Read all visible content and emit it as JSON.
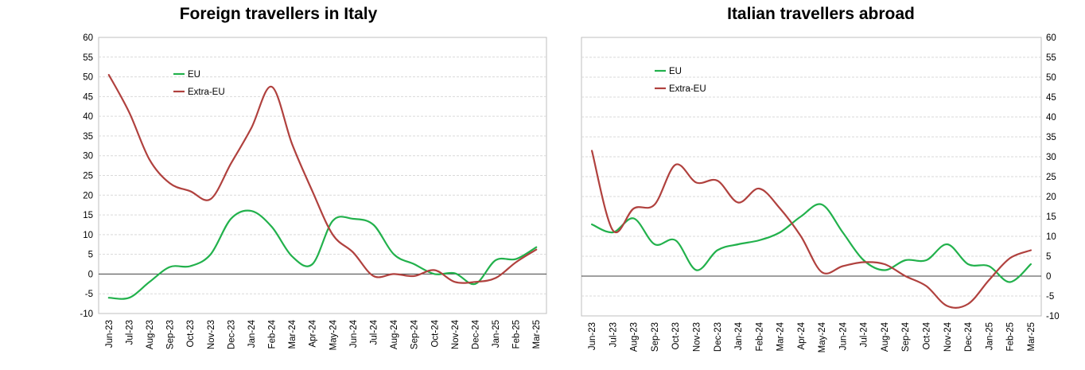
{
  "chart_data": [
    {
      "type": "line",
      "title": "Foreign travellers in Italy",
      "xlabel": "",
      "ylabel": "",
      "ylim": [
        -10,
        60
      ],
      "ytick_step": 5,
      "y_axis_side": "left",
      "legend_placement": "top-left",
      "grid": true,
      "categories": [
        "Jun-23",
        "Jul-23",
        "Aug-23",
        "Sep-23",
        "Oct-23",
        "Nov-23",
        "Dec-23",
        "Jan-24",
        "Feb-24",
        "Mar-24",
        "Apr-24",
        "May-24",
        "Jun-24",
        "Jul-24",
        "Aug-24",
        "Sep-24",
        "Oct-24",
        "Nov-24",
        "Dec-24",
        "Jan-25",
        "Feb-25",
        "Mar-25"
      ],
      "series": [
        {
          "name": "EU",
          "color": "#22b14c",
          "values": [
            -6,
            -6,
            -2,
            1.8,
            2,
            5,
            14,
            16,
            12,
            4.5,
            2.5,
            13.5,
            14,
            12.5,
            5,
            2.5,
            0,
            0.2,
            -2.5,
            3.5,
            3.8,
            6.8
          ]
        },
        {
          "name": "Extra-EU",
          "color": "#b0413e",
          "values": [
            50.5,
            41,
            29,
            23,
            21,
            19,
            28,
            37,
            47.5,
            33,
            21,
            10,
            5.5,
            -0.5,
            0,
            -0.5,
            1,
            -2,
            -2,
            -1,
            3,
            6.2
          ]
        }
      ]
    },
    {
      "type": "line",
      "title": "Italian travellers abroad",
      "xlabel": "",
      "ylabel": "",
      "ylim": [
        -10,
        60
      ],
      "ytick_step": 5,
      "y_axis_side": "right",
      "legend_placement": "top-left",
      "grid": true,
      "categories": [
        "Jun-23",
        "Jul-23",
        "Aug-23",
        "Sep-23",
        "Oct-23",
        "Nov-23",
        "Dec-23",
        "Jan-24",
        "Feb-24",
        "Mar-24",
        "Apr-24",
        "May-24",
        "Jun-24",
        "Jul-24",
        "Aug-24",
        "Sep-24",
        "Oct-24",
        "Nov-24",
        "Dec-24",
        "Jan-25",
        "Feb-25",
        "Mar-25"
      ],
      "series": [
        {
          "name": "EU",
          "color": "#22b14c",
          "values": [
            13,
            11,
            14.5,
            8,
            9,
            1.5,
            6.5,
            8,
            9,
            11,
            15,
            18,
            11,
            4,
            1.5,
            4,
            4,
            8,
            3,
            2.5,
            -1.5,
            3
          ]
        },
        {
          "name": "Extra-EU",
          "color": "#b0413e",
          "values": [
            31.5,
            11.5,
            17,
            18,
            28,
            23.5,
            24,
            18.5,
            22,
            17,
            10,
            1,
            2.5,
            3.5,
            3,
            0,
            -2.5,
            -7.5,
            -7,
            -1,
            4.5,
            6.5
          ]
        }
      ]
    }
  ]
}
